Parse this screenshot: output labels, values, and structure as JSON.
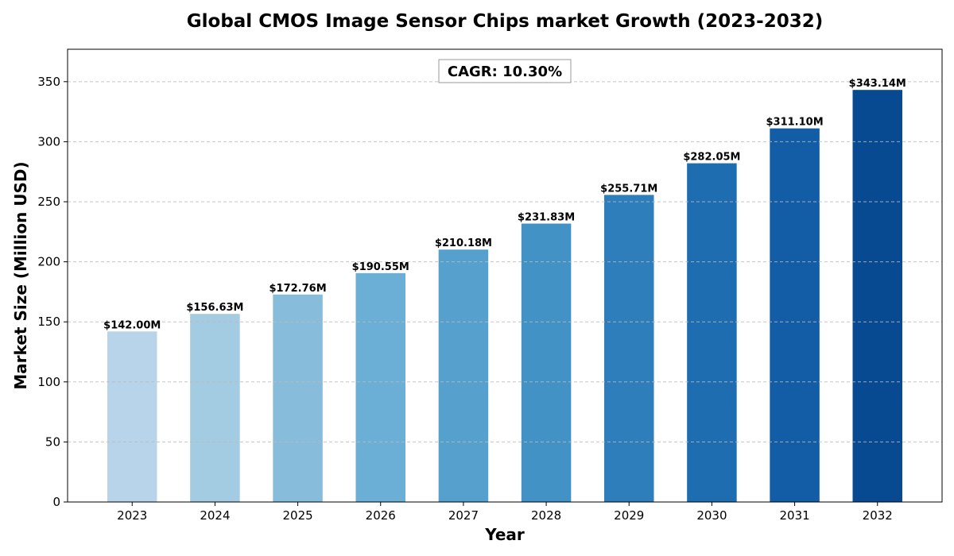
{
  "chart_data": {
    "type": "bar",
    "title": "Global CMOS Image Sensor Chips market Growth (2023-2032)",
    "xlabel": "Year",
    "ylabel": "Market Size (Million USD)",
    "categories": [
      "2023",
      "2024",
      "2025",
      "2026",
      "2027",
      "2028",
      "2029",
      "2030",
      "2031",
      "2032"
    ],
    "values": [
      142.0,
      156.63,
      172.76,
      190.55,
      210.18,
      231.83,
      255.71,
      282.05,
      311.1,
      343.14
    ],
    "data_labels": [
      "$142.00M",
      "$156.63M",
      "$172.76M",
      "$190.55M",
      "$210.18M",
      "$231.83M",
      "$255.71M",
      "$282.05M",
      "$311.10M",
      "$343.14M"
    ],
    "colors": [
      "#b7d4ea",
      "#a3cbe2",
      "#88bcdb",
      "#6baed6",
      "#56a0ce",
      "#4292c6",
      "#2f7ebc",
      "#1f6db1",
      "#125da6",
      "#084a91"
    ],
    "yticks": [
      0,
      50,
      100,
      150,
      200,
      250,
      300,
      350
    ],
    "ylim": [
      0,
      377
    ],
    "grid": "horizontal dashed",
    "annotation": "CAGR: 10.30%"
  }
}
